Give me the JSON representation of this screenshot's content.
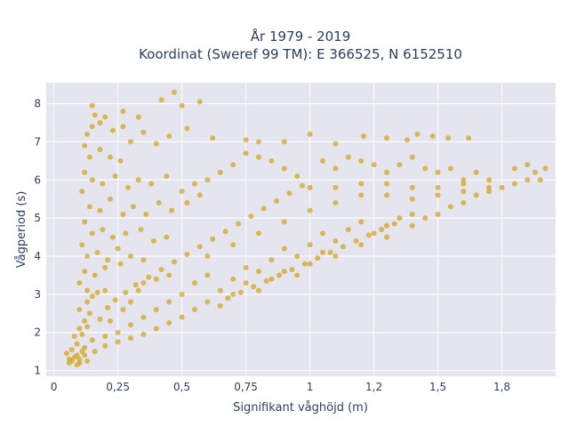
{
  "chart_data": {
    "type": "scatter",
    "title_line1": "År 1979 - 2019",
    "title_line2": "Koordinat (Sweref 99 TM): E 366525, N 6152510",
    "xlabel": "Signifikant våghöjd (m)",
    "ylabel": "Vågperiod (s)",
    "xlim": [
      -0.03,
      1.96
    ],
    "ylim": [
      0.85,
      8.55
    ],
    "x_ticks": [
      {
        "value": 0,
        "label": "0"
      },
      {
        "value": 0.25,
        "label": "0,25"
      },
      {
        "value": 0.5,
        "label": "0,5"
      },
      {
        "value": 0.75,
        "label": "0,75"
      },
      {
        "value": 1,
        "label": "1"
      },
      {
        "value": 1.25,
        "label": "1,2"
      },
      {
        "value": 1.5,
        "label": "1,5"
      },
      {
        "value": 1.75,
        "label": "1,8"
      }
    ],
    "y_ticks": [
      {
        "value": 1,
        "label": "1"
      },
      {
        "value": 2,
        "label": "2"
      },
      {
        "value": 3,
        "label": "3"
      },
      {
        "value": 4,
        "label": "4"
      },
      {
        "value": 5,
        "label": "5"
      },
      {
        "value": 6,
        "label": "6"
      },
      {
        "value": 7,
        "label": "7"
      },
      {
        "value": 8,
        "label": "8"
      }
    ],
    "grid": true,
    "marker_color": "#d4a520",
    "plot_bgcolor": "#e5e5f0",
    "series": [
      {
        "points": [
          [
            0.05,
            1.45
          ],
          [
            0.06,
            1.3
          ],
          [
            0.07,
            1.25
          ],
          [
            0.08,
            1.35
          ],
          [
            0.09,
            1.4
          ],
          [
            0.1,
            1.3
          ],
          [
            0.11,
            1.5
          ],
          [
            0.12,
            1.6
          ],
          [
            0.08,
            1.9
          ],
          [
            0.1,
            2.1
          ],
          [
            0.12,
            2.3
          ],
          [
            0.14,
            2.5
          ],
          [
            0.1,
            2.6
          ],
          [
            0.13,
            2.8
          ],
          [
            0.15,
            2.95
          ],
          [
            0.17,
            3.05
          ],
          [
            0.2,
            3.1
          ],
          [
            0.15,
            1.8
          ],
          [
            0.2,
            1.9
          ],
          [
            0.25,
            2.0
          ],
          [
            0.22,
            2.3
          ],
          [
            0.27,
            2.6
          ],
          [
            0.3,
            2.8
          ],
          [
            0.33,
            3.1
          ],
          [
            0.35,
            3.3
          ],
          [
            0.4,
            3.4
          ],
          [
            0.45,
            3.5
          ],
          [
            0.3,
            2.2
          ],
          [
            0.35,
            2.4
          ],
          [
            0.4,
            2.6
          ],
          [
            0.45,
            2.8
          ],
          [
            0.5,
            3.0
          ],
          [
            0.55,
            3.3
          ],
          [
            0.6,
            3.5
          ],
          [
            0.5,
            2.4
          ],
          [
            0.55,
            2.6
          ],
          [
            0.6,
            2.8
          ],
          [
            0.65,
            3.1
          ],
          [
            0.7,
            3.4
          ],
          [
            0.75,
            3.7
          ],
          [
            0.65,
            2.7
          ],
          [
            0.7,
            3.0
          ],
          [
            0.75,
            3.3
          ],
          [
            0.8,
            3.6
          ],
          [
            0.85,
            3.9
          ],
          [
            0.9,
            4.2
          ],
          [
            0.8,
            3.1
          ],
          [
            0.85,
            3.4
          ],
          [
            0.9,
            3.6
          ],
          [
            0.95,
            4.0
          ],
          [
            1.0,
            4.3
          ],
          [
            1.05,
            4.6
          ],
          [
            0.95,
            3.5
          ],
          [
            1.0,
            3.8
          ],
          [
            1.05,
            4.1
          ],
          [
            1.1,
            4.4
          ],
          [
            1.15,
            4.7
          ],
          [
            1.2,
            4.9
          ],
          [
            1.1,
            4.0
          ],
          [
            1.2,
            4.3
          ],
          [
            1.25,
            4.6
          ],
          [
            1.3,
            4.8
          ],
          [
            1.35,
            5.0
          ],
          [
            1.4,
            5.1
          ],
          [
            1.3,
            4.5
          ],
          [
            1.4,
            4.8
          ],
          [
            1.45,
            5.0
          ],
          [
            1.5,
            5.1
          ],
          [
            1.55,
            5.3
          ],
          [
            1.6,
            5.4
          ],
          [
            1.65,
            5.6
          ],
          [
            1.7,
            5.7
          ],
          [
            1.75,
            5.8
          ],
          [
            1.8,
            5.9
          ],
          [
            1.85,
            6.0
          ],
          [
            1.88,
            6.2
          ],
          [
            1.9,
            6.0
          ],
          [
            1.92,
            6.3
          ],
          [
            1.85,
            6.4
          ],
          [
            1.8,
            6.3
          ],
          [
            1.7,
            6.0
          ],
          [
            1.6,
            5.9
          ],
          [
            1.5,
            5.8
          ],
          [
            1.4,
            5.8
          ],
          [
            1.3,
            5.9
          ],
          [
            1.2,
            5.9
          ],
          [
            1.1,
            5.8
          ],
          [
            1.0,
            5.8
          ],
          [
            0.95,
            6.1
          ],
          [
            0.9,
            6.3
          ],
          [
            0.85,
            6.5
          ],
          [
            0.8,
            6.6
          ],
          [
            0.75,
            6.7
          ],
          [
            0.7,
            6.4
          ],
          [
            0.65,
            6.2
          ],
          [
            0.6,
            6.0
          ],
          [
            0.55,
            5.9
          ],
          [
            0.5,
            5.7
          ],
          [
            1.05,
            6.5
          ],
          [
            1.1,
            6.3
          ],
          [
            1.15,
            6.6
          ],
          [
            1.2,
            6.5
          ],
          [
            1.25,
            6.4
          ],
          [
            1.3,
            6.2
          ],
          [
            1.35,
            6.4
          ],
          [
            1.4,
            6.6
          ],
          [
            1.45,
            6.3
          ],
          [
            1.5,
            6.2
          ],
          [
            1.55,
            6.3
          ],
          [
            1.6,
            6.0
          ],
          [
            1.65,
            6.2
          ],
          [
            1.38,
            7.05
          ],
          [
            1.42,
            7.2
          ],
          [
            1.48,
            7.15
          ],
          [
            1.54,
            7.1
          ],
          [
            1.62,
            7.1
          ],
          [
            1.3,
            7.1
          ],
          [
            1.21,
            7.15
          ],
          [
            1.1,
            6.95
          ],
          [
            1.0,
            7.2
          ],
          [
            0.9,
            7.0
          ],
          [
            0.8,
            7.0
          ],
          [
            0.75,
            7.05
          ],
          [
            0.62,
            7.1
          ],
          [
            0.52,
            7.35
          ],
          [
            0.45,
            7.15
          ],
          [
            0.4,
            6.95
          ],
          [
            0.35,
            7.25
          ],
          [
            0.3,
            7.0
          ],
          [
            0.27,
            7.4
          ],
          [
            0.23,
            7.3
          ],
          [
            0.18,
            7.5
          ],
          [
            0.15,
            7.4
          ],
          [
            0.13,
            7.2
          ],
          [
            0.16,
            7.7
          ],
          [
            0.15,
            7.95
          ],
          [
            0.2,
            7.65
          ],
          [
            0.27,
            7.8
          ],
          [
            0.33,
            7.65
          ],
          [
            0.42,
            8.1
          ],
          [
            0.47,
            8.3
          ],
          [
            0.5,
            7.95
          ],
          [
            0.57,
            8.05
          ],
          [
            0.12,
            6.9
          ],
          [
            0.14,
            6.6
          ],
          [
            0.18,
            6.8
          ],
          [
            0.22,
            6.6
          ],
          [
            0.26,
            6.5
          ],
          [
            0.12,
            6.2
          ],
          [
            0.15,
            6.0
          ],
          [
            0.19,
            5.9
          ],
          [
            0.24,
            6.1
          ],
          [
            0.29,
            5.8
          ],
          [
            0.33,
            6.0
          ],
          [
            0.38,
            5.9
          ],
          [
            0.44,
            6.1
          ],
          [
            0.11,
            5.7
          ],
          [
            0.14,
            5.3
          ],
          [
            0.18,
            5.2
          ],
          [
            0.22,
            5.5
          ],
          [
            0.27,
            5.1
          ],
          [
            0.31,
            5.3
          ],
          [
            0.36,
            5.1
          ],
          [
            0.41,
            5.4
          ],
          [
            0.46,
            5.2
          ],
          [
            0.52,
            5.4
          ],
          [
            0.57,
            5.6
          ],
          [
            0.12,
            4.9
          ],
          [
            0.15,
            4.6
          ],
          [
            0.19,
            4.7
          ],
          [
            0.23,
            4.5
          ],
          [
            0.28,
            4.6
          ],
          [
            0.34,
            4.7
          ],
          [
            0.39,
            4.4
          ],
          [
            0.44,
            4.5
          ],
          [
            0.11,
            4.3
          ],
          [
            0.13,
            4.0
          ],
          [
            0.17,
            4.1
          ],
          [
            0.21,
            3.9
          ],
          [
            0.26,
            3.8
          ],
          [
            0.12,
            3.6
          ],
          [
            0.16,
            3.5
          ],
          [
            0.2,
            3.7
          ],
          [
            0.1,
            3.3
          ],
          [
            0.13,
            3.1
          ],
          [
            0.25,
            4.2
          ],
          [
            0.3,
            4.0
          ],
          [
            0.35,
            3.9
          ],
          [
            0.09,
            1.7
          ],
          [
            0.07,
            1.55
          ],
          [
            0.11,
            1.95
          ],
          [
            0.13,
            2.15
          ],
          [
            0.18,
            2.35
          ],
          [
            0.21,
            2.65
          ],
          [
            0.24,
            2.85
          ],
          [
            0.28,
            3.05
          ],
          [
            0.32,
            3.25
          ],
          [
            0.37,
            3.45
          ],
          [
            0.42,
            3.65
          ],
          [
            0.47,
            3.85
          ],
          [
            0.52,
            4.05
          ],
          [
            0.57,
            4.25
          ],
          [
            0.62,
            4.45
          ],
          [
            0.67,
            4.65
          ],
          [
            0.72,
            4.85
          ],
          [
            0.77,
            5.05
          ],
          [
            0.82,
            5.25
          ],
          [
            0.87,
            5.45
          ],
          [
            0.92,
            5.65
          ],
          [
            0.97,
            5.85
          ],
          [
            0.6,
            4.0
          ],
          [
            0.7,
            4.3
          ],
          [
            0.8,
            4.6
          ],
          [
            0.9,
            4.9
          ],
          [
            1.0,
            5.2
          ],
          [
            1.1,
            5.4
          ],
          [
            1.2,
            5.6
          ],
          [
            1.3,
            5.6
          ],
          [
            1.4,
            5.5
          ],
          [
            1.5,
            5.6
          ],
          [
            1.6,
            5.7
          ],
          [
            1.7,
            5.8
          ],
          [
            0.68,
            2.9
          ],
          [
            0.73,
            3.05
          ],
          [
            0.78,
            3.2
          ],
          [
            0.83,
            3.35
          ],
          [
            0.88,
            3.5
          ],
          [
            0.93,
            3.65
          ],
          [
            0.98,
            3.8
          ],
          [
            1.03,
            3.95
          ],
          [
            1.08,
            4.1
          ],
          [
            1.13,
            4.25
          ],
          [
            1.18,
            4.4
          ],
          [
            1.23,
            4.55
          ],
          [
            1.28,
            4.7
          ],
          [
            1.33,
            4.85
          ],
          [
            0.4,
            2.1
          ],
          [
            0.45,
            2.25
          ],
          [
            0.35,
            1.95
          ],
          [
            0.3,
            1.85
          ],
          [
            0.25,
            1.75
          ],
          [
            0.2,
            1.65
          ],
          [
            0.16,
            1.5
          ],
          [
            0.12,
            1.4
          ],
          [
            0.1,
            1.2
          ],
          [
            0.13,
            1.25
          ],
          [
            0.09,
            1.15
          ],
          [
            0.06,
            1.2
          ]
        ]
      }
    ]
  }
}
